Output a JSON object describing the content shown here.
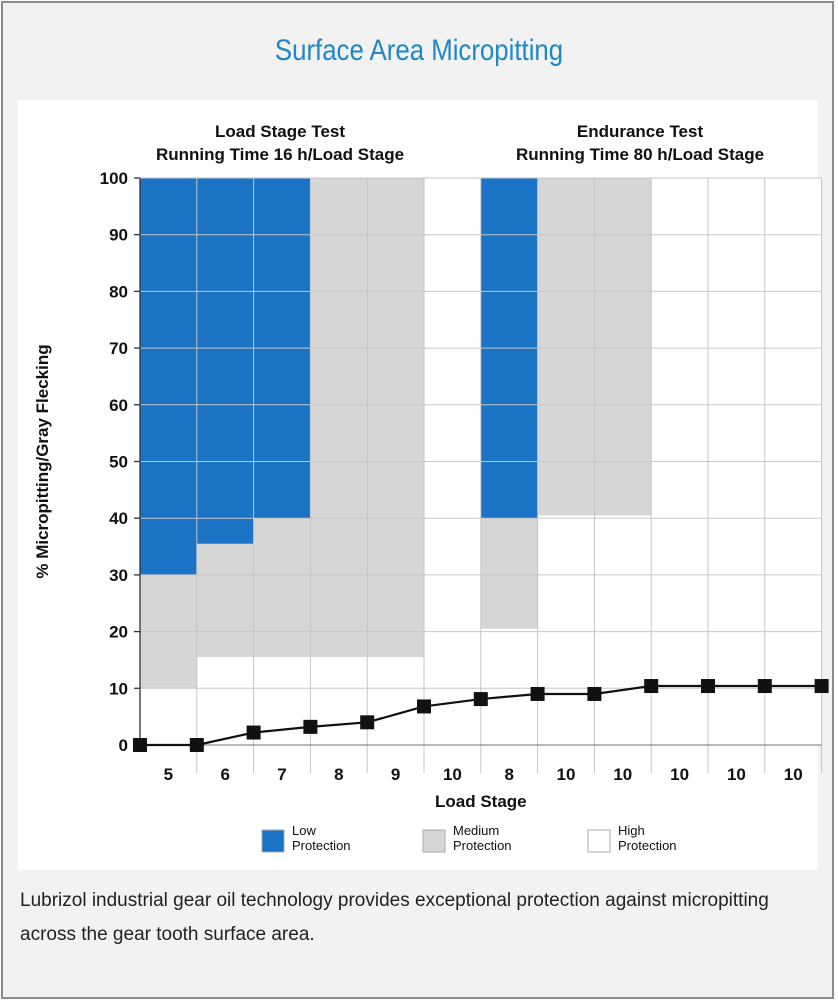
{
  "chart_data": {
    "type": "bar",
    "title": "Surface Area Micropitting",
    "ylabel": "% Micropitting/Gray Flecking",
    "xlabel": "Load Stage",
    "ylim": [
      0,
      100
    ],
    "yticks": [
      0,
      10,
      20,
      30,
      40,
      50,
      60,
      70,
      80,
      90,
      100
    ],
    "grid": true,
    "sections": [
      {
        "line1": "Load Stage Test",
        "line2": "Running Time 16 h/Load Stage"
      },
      {
        "line1": "Endurance Test",
        "line2": "Running Time 80 h/Load Stage"
      }
    ],
    "categories": [
      "5",
      "6",
      "7",
      "8",
      "9",
      "10",
      "8",
      "10",
      "10",
      "10",
      "10",
      "10"
    ],
    "bands": {
      "high_protection_upper": [
        10,
        15.5,
        15.5,
        15.5,
        15.5,
        100,
        20.5,
        40.5,
        40.5,
        100,
        100,
        100
      ],
      "medium_protection_upper": [
        30,
        35.5,
        40,
        100,
        100,
        100,
        40,
        100,
        100,
        100,
        100,
        100
      ]
    },
    "line_series": {
      "values": [
        0,
        0,
        2.2,
        3.2,
        4.0,
        6.8,
        8.1,
        9.0,
        9.0,
        10.4,
        10.4,
        10.4,
        10.4
      ]
    },
    "legend": [
      {
        "line1": "Low",
        "line2": "Protection",
        "color": "#1a73c5"
      },
      {
        "line1": "Medium",
        "line2": "Protection",
        "color": "#d6d6d6"
      },
      {
        "line1": "High",
        "line2": "Protection",
        "color": "#ffffff"
      }
    ],
    "legend_position": "bottom-center",
    "colors": {
      "low": "#1a73c5",
      "medium": "#d6d6d6",
      "high": "#ffffff",
      "line": "#111111"
    }
  },
  "caption": "Lubrizol industrial gear oil technology provides exceptional protection against micropitting across the gear tooth surface area."
}
